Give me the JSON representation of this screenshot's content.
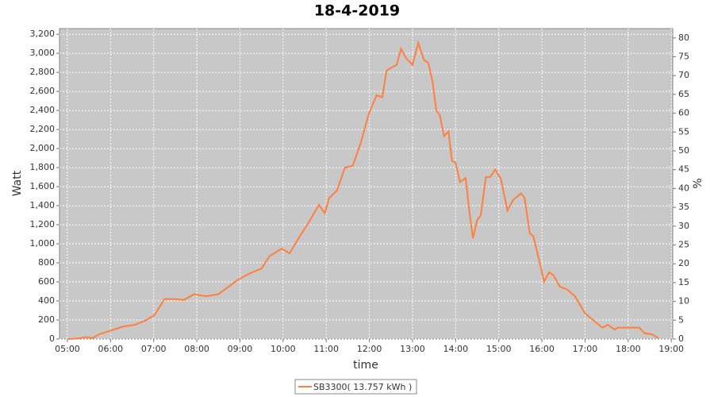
{
  "chart_data": {
    "type": "line",
    "title": "18-4-2019",
    "x_label": "time",
    "y_label": "Watt",
    "y2_label": "%",
    "x": [
      "05:00",
      "05:15",
      "05:25",
      "05:35",
      "05:44",
      "06:01",
      "06:17",
      "06:34",
      "06:50",
      "07:01",
      "07:15",
      "07:29",
      "07:42",
      "07:56",
      "08:13",
      "08:30",
      "08:46",
      "08:57",
      "09:14",
      "09:30",
      "09:41",
      "09:58",
      "10:09",
      "10:20",
      "10:36",
      "10:50",
      "10:58",
      "11:04",
      "11:15",
      "11:26",
      "11:37",
      "11:48",
      "11:59",
      "12:10",
      "12:18",
      "12:24",
      "12:33",
      "12:38",
      "12:44",
      "12:51",
      "13:00",
      "13:08",
      "13:16",
      "13:22",
      "13:28",
      "13:33",
      "13:38",
      "13:44",
      "13:50",
      "13:55",
      "14:00",
      "14:06",
      "14:14",
      "14:19",
      "14:24",
      "14:30",
      "14:35",
      "14:42",
      "14:48",
      "14:55",
      "15:03",
      "15:12",
      "15:20",
      "15:31",
      "15:36",
      "15:43",
      "15:48",
      "15:57",
      "16:03",
      "16:10",
      "16:16",
      "16:25",
      "16:35",
      "16:46",
      "17:00",
      "17:11",
      "17:24",
      "17:32",
      "17:41",
      "17:46",
      "17:58",
      "18:15",
      "18:23",
      "18:33",
      "18:42"
    ],
    "series": [
      {
        "name": "SB3300( 13.757 kWh )",
        "color": "#ff7f3f",
        "values": [
          0,
          5,
          20,
          10,
          50,
          90,
          130,
          150,
          200,
          250,
          420,
          420,
          410,
          470,
          450,
          470,
          560,
          620,
          690,
          740,
          870,
          950,
          900,
          1040,
          1230,
          1410,
          1320,
          1480,
          1560,
          1800,
          1820,
          2060,
          2360,
          2560,
          2540,
          2820,
          2860,
          2880,
          3050,
          2950,
          2880,
          3110,
          2930,
          2900,
          2700,
          2400,
          2350,
          2130,
          2180,
          1870,
          1850,
          1650,
          1690,
          1350,
          1060,
          1250,
          1300,
          1700,
          1700,
          1780,
          1680,
          1350,
          1460,
          1530,
          1480,
          1110,
          1080,
          800,
          600,
          700,
          670,
          550,
          520,
          450,
          270,
          200,
          120,
          150,
          100,
          120,
          120,
          120,
          60,
          50,
          10
        ]
      }
    ],
    "xlim": [
      "04:49",
      "19:02"
    ],
    "xticks": [
      "05:00",
      "06:00",
      "07:00",
      "08:00",
      "09:00",
      "10:00",
      "11:00",
      "12:00",
      "13:00",
      "14:00",
      "15:00",
      "16:00",
      "17:00",
      "18:00",
      "19:00"
    ],
    "ylim": [
      0,
      3260
    ],
    "yticks": [
      0,
      200,
      400,
      600,
      800,
      {
        "value": 1000,
        "label": "1,000"
      },
      {
        "value": 1200,
        "label": "1,200"
      },
      {
        "value": 1400,
        "label": "1,400"
      },
      {
        "value": 1600,
        "label": "1,600"
      },
      {
        "value": 1800,
        "label": "1,800"
      },
      {
        "value": 2000,
        "label": "2,000"
      },
      {
        "value": 2200,
        "label": "2,200"
      },
      {
        "value": 2400,
        "label": "2,400"
      },
      {
        "value": 2600,
        "label": "2,600"
      },
      {
        "value": 2800,
        "label": "2,800"
      },
      {
        "value": 3000,
        "label": "3,000"
      },
      {
        "value": 3200,
        "label": "3,200"
      }
    ],
    "y2lim": [
      0,
      82.5
    ],
    "y2ticks": [
      0,
      5,
      10,
      15,
      20,
      25,
      30,
      35,
      40,
      45,
      50,
      55,
      60,
      65,
      70,
      75,
      80
    ],
    "grid": true
  }
}
